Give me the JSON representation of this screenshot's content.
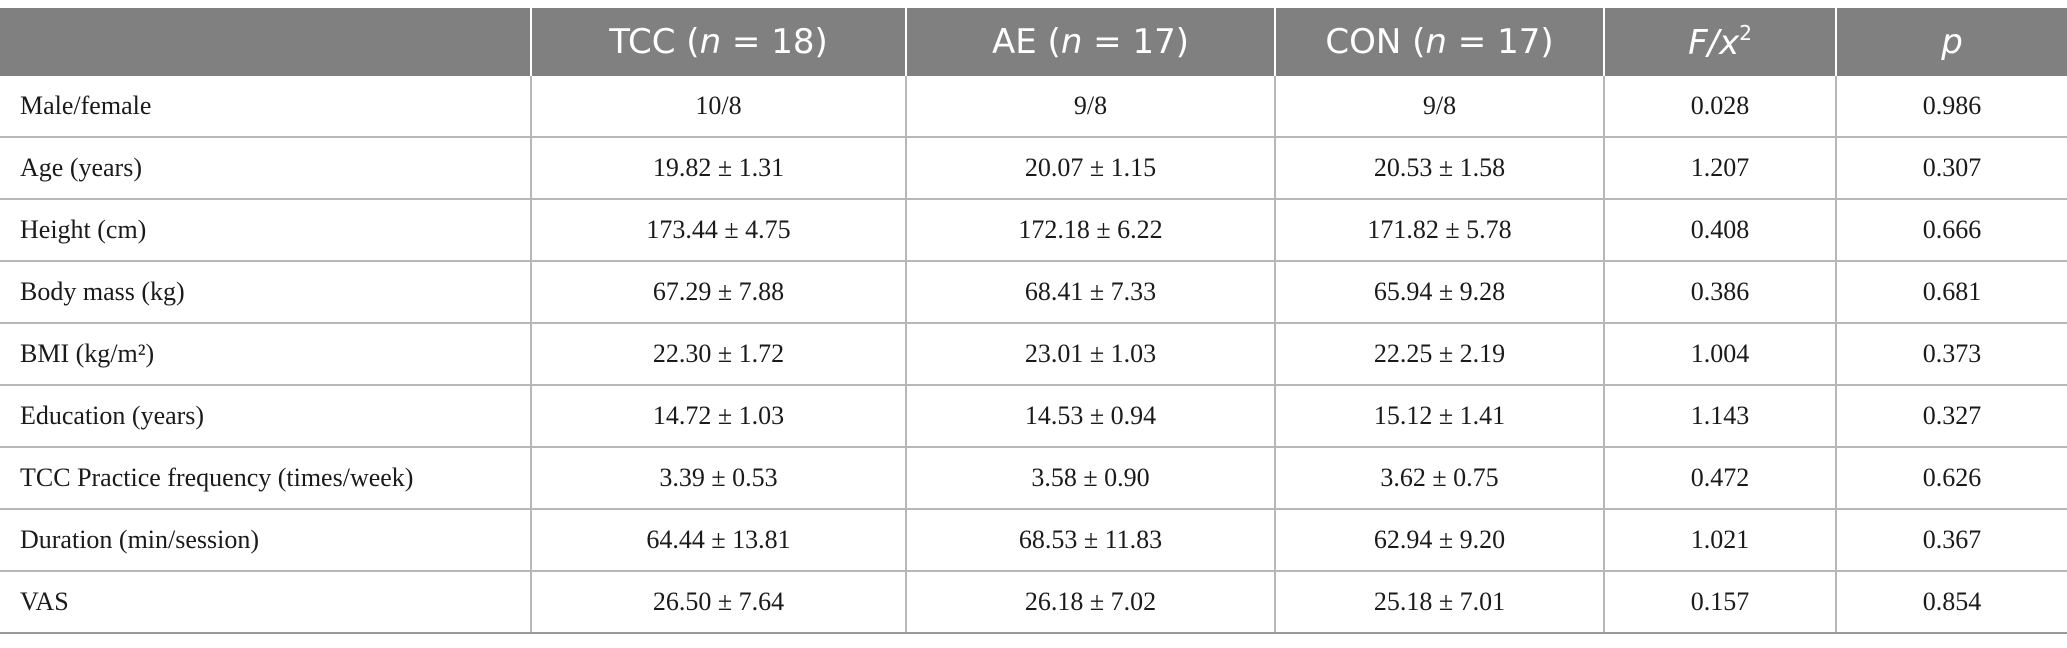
{
  "header": {
    "col0": "",
    "col1_prefix": "TCC (",
    "col1_n": "n",
    "col1_suffix": " = 18)",
    "col2_prefix": "AE (",
    "col2_n": "n",
    "col2_suffix": " = 17)",
    "col3_prefix": "CON (",
    "col3_n": "n",
    "col3_suffix": " = 17)",
    "col4_base": "F/x",
    "col4_sup": "2",
    "col5": "p"
  },
  "rows": [
    {
      "label": "Male/female",
      "tcc": "10/8",
      "ae": "9/8",
      "con": "9/8",
      "f": "0.028",
      "p": "0.986"
    },
    {
      "label": "Age (years)",
      "tcc": "19.82 ± 1.31",
      "ae": "20.07 ± 1.15",
      "con": "20.53 ± 1.58",
      "f": "1.207",
      "p": "0.307"
    },
    {
      "label": "Height (cm)",
      "tcc": "173.44 ± 4.75",
      "ae": "172.18 ± 6.22",
      "con": "171.82 ± 5.78",
      "f": "0.408",
      "p": "0.666"
    },
    {
      "label": "Body mass (kg)",
      "tcc": "67.29 ± 7.88",
      "ae": "68.41 ± 7.33",
      "con": "65.94 ± 9.28",
      "f": "0.386",
      "p": "0.681"
    },
    {
      "label": "BMI (kg/m²)",
      "tcc": "22.30 ± 1.72",
      "ae": "23.01 ± 1.03",
      "con": "22.25 ± 2.19",
      "f": "1.004",
      "p": "0.373"
    },
    {
      "label": "Education (years)",
      "tcc": "14.72 ± 1.03",
      "ae": "14.53 ± 0.94",
      "con": "15.12 ± 1.41",
      "f": "1.143",
      "p": "0.327"
    },
    {
      "label": "TCC Practice frequency (times/week)",
      "tcc": "3.39 ± 0.53",
      "ae": "3.58 ± 0.90",
      "con": "3.62 ± 0.75",
      "f": "0.472",
      "p": "0.626"
    },
    {
      "label": "Duration (min/session)",
      "tcc": "64.44 ± 13.81",
      "ae": "68.53 ± 11.83",
      "con": "62.94 ± 9.20",
      "f": "1.021",
      "p": "0.367"
    },
    {
      "label": "VAS",
      "tcc": "26.50 ± 7.64",
      "ae": "26.18 ± 7.02",
      "con": "25.18 ± 7.01",
      "f": "0.157",
      "p": "0.854"
    }
  ]
}
